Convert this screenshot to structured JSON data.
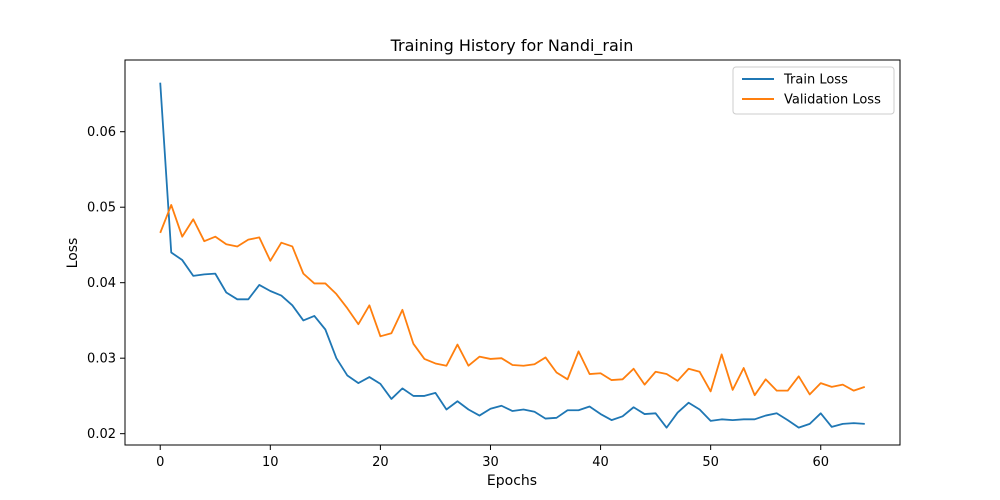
{
  "chart_data": {
    "type": "line",
    "title": "Training History for Nandi_rain",
    "xlabel": "Epochs",
    "ylabel": "Loss",
    "xlim": [
      -3.2,
      67.2
    ],
    "ylim": [
      0.0185,
      0.0695
    ],
    "xticks": [
      0,
      10,
      20,
      30,
      40,
      50,
      60
    ],
    "yticks": [
      0.02,
      0.03,
      0.04,
      0.05,
      0.06
    ],
    "ytick_labels": [
      "0.02",
      "0.03",
      "0.04",
      "0.05",
      "0.06"
    ],
    "grid": false,
    "legend_position": "top-right",
    "x": [
      0,
      1,
      2,
      3,
      4,
      5,
      6,
      7,
      8,
      9,
      10,
      11,
      12,
      13,
      14,
      15,
      16,
      17,
      18,
      19,
      20,
      21,
      22,
      23,
      24,
      25,
      26,
      27,
      28,
      29,
      30,
      31,
      32,
      33,
      34,
      35,
      36,
      37,
      38,
      39,
      40,
      41,
      42,
      43,
      44,
      45,
      46,
      47,
      48,
      49,
      50,
      51,
      52,
      53,
      54,
      55,
      56,
      57,
      58,
      59,
      60,
      61,
      62,
      63,
      64
    ],
    "series": [
      {
        "name": "Train Loss",
        "color": "#1f77b4",
        "values": [
          0.0665,
          0.044,
          0.043,
          0.0409,
          0.0411,
          0.0412,
          0.0387,
          0.0378,
          0.0378,
          0.0397,
          0.0389,
          0.0383,
          0.037,
          0.035,
          0.0356,
          0.0338,
          0.03,
          0.0277,
          0.0267,
          0.0275,
          0.0266,
          0.0246,
          0.026,
          0.025,
          0.025,
          0.0254,
          0.0232,
          0.0243,
          0.0232,
          0.0224,
          0.0233,
          0.0237,
          0.023,
          0.0232,
          0.0229,
          0.022,
          0.0221,
          0.0231,
          0.0231,
          0.0236,
          0.0226,
          0.0218,
          0.0223,
          0.0235,
          0.0226,
          0.0227,
          0.0208,
          0.0228,
          0.0241,
          0.0232,
          0.0217,
          0.0219,
          0.0218,
          0.0219,
          0.0219,
          0.0224,
          0.0227,
          0.0218,
          0.0208,
          0.0213,
          0.0227,
          0.0209,
          0.0213,
          0.0214,
          0.0213
        ]
      },
      {
        "name": "Validation Loss",
        "color": "#ff7f0e",
        "values": [
          0.0466,
          0.0503,
          0.0461,
          0.0484,
          0.0455,
          0.0461,
          0.0451,
          0.0448,
          0.0457,
          0.046,
          0.0429,
          0.0453,
          0.0448,
          0.0412,
          0.0399,
          0.0399,
          0.0385,
          0.0366,
          0.0345,
          0.037,
          0.0329,
          0.0333,
          0.0364,
          0.0319,
          0.0299,
          0.0293,
          0.029,
          0.0318,
          0.029,
          0.0302,
          0.0299,
          0.03,
          0.0291,
          0.029,
          0.0292,
          0.0301,
          0.0281,
          0.0272,
          0.0309,
          0.0279,
          0.028,
          0.0271,
          0.0272,
          0.0286,
          0.0265,
          0.0282,
          0.0279,
          0.027,
          0.0286,
          0.0282,
          0.0256,
          0.0305,
          0.0258,
          0.0287,
          0.0251,
          0.0272,
          0.0257,
          0.0257,
          0.0276,
          0.0252,
          0.0267,
          0.0262,
          0.0265,
          0.0257,
          0.0262
        ]
      }
    ]
  }
}
